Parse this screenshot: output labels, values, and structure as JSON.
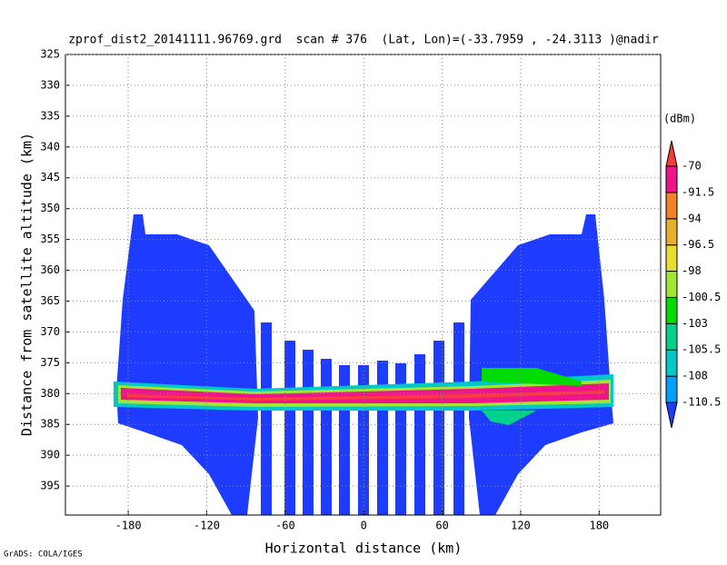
{
  "chart_data": {
    "type": "heatmap",
    "title": "zprof_dist2_20141111.96769.grd  scan # 376  (Lat, Lon)=(-33.7959 , -24.3113 )@nadir",
    "x_label": "Horizontal distance (km)",
    "y_label": "Distance from satellite altitude (km)",
    "xlim": [
      -228,
      227
    ],
    "xticks": [
      -180,
      -120,
      -60,
      0,
      60,
      120,
      180
    ],
    "ylim": [
      325,
      399.7
    ],
    "yticks": [
      325,
      330,
      335,
      340,
      345,
      350,
      355,
      360,
      365,
      370,
      375,
      380,
      385,
      390,
      395
    ],
    "y_inverted": true,
    "grid": true,
    "colorbar": {
      "unit": "(dBm)",
      "levels": [
        -110.5,
        -108,
        -105.5,
        -103,
        -100.5,
        -98,
        -96.5,
        -94,
        -91.5,
        -70
      ],
      "colors": [
        "#1e3cff",
        "#00a0ff",
        "#00c8c8",
        "#00d28c",
        "#00dc00",
        "#a0e632",
        "#e6dc32",
        "#e6af2d",
        "#f08228",
        "#f0148c",
        "#fa3c3c"
      ]
    },
    "credit": "GrADS: COLA/IGES"
  }
}
